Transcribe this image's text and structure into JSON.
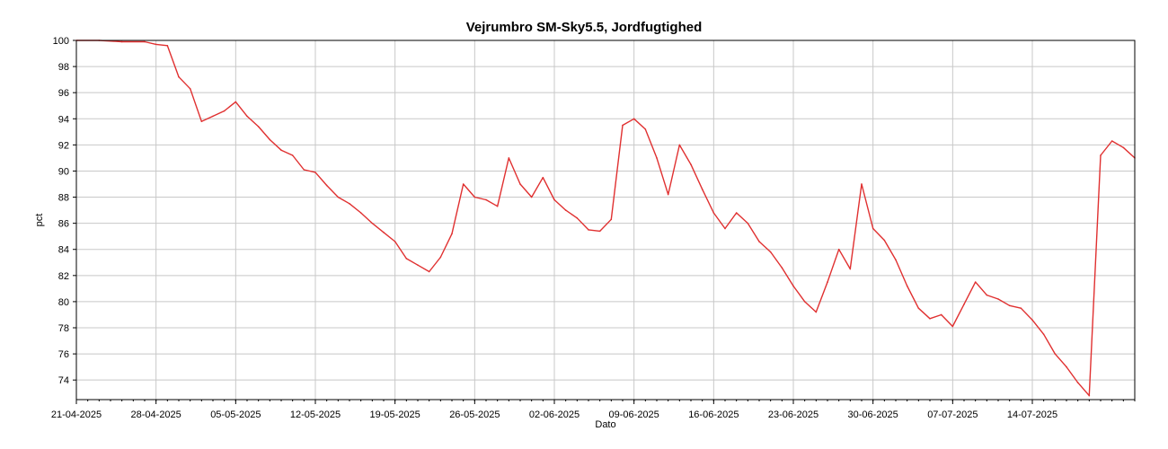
{
  "chart_data": {
    "type": "line",
    "title": "Vejrumbro SM-Sky5.5, Jordfugtighed",
    "xlabel": "Dato",
    "ylabel": "pct",
    "ylim": [
      72.5,
      100
    ],
    "yticks": [
      100,
      98,
      96,
      94,
      92,
      90,
      88,
      86,
      84,
      82,
      80,
      78,
      76,
      74
    ],
    "x_range": [
      "2025-04-21",
      "2025-07-23"
    ],
    "xticks": [
      "21-04-2025",
      "28-04-2025",
      "05-05-2025",
      "12-05-2025",
      "19-05-2025",
      "26-05-2025",
      "02-06-2025",
      "09-06-2025",
      "16-06-2025",
      "23-06-2025",
      "30-06-2025",
      "07-07-2025",
      "14-07-2025"
    ],
    "grid": true,
    "line_color": "#e03030",
    "series": [
      {
        "x": [
          "2025-04-21",
          "2025-04-23",
          "2025-04-25",
          "2025-04-27",
          "2025-04-28",
          "2025-04-29",
          "2025-04-30",
          "2025-05-01",
          "2025-05-02",
          "2025-05-03",
          "2025-05-04",
          "2025-05-05",
          "2025-05-06",
          "2025-05-07",
          "2025-05-08",
          "2025-05-09",
          "2025-05-10",
          "2025-05-11",
          "2025-05-12",
          "2025-05-13",
          "2025-05-14",
          "2025-05-15",
          "2025-05-16",
          "2025-05-17",
          "2025-05-18",
          "2025-05-19",
          "2025-05-20",
          "2025-05-21",
          "2025-05-22",
          "2025-05-23",
          "2025-05-24",
          "2025-05-25",
          "2025-05-26",
          "2025-05-27",
          "2025-05-28",
          "2025-05-29",
          "2025-05-30",
          "2025-05-31",
          "2025-06-01",
          "2025-06-02",
          "2025-06-03",
          "2025-06-04",
          "2025-06-05",
          "2025-06-06",
          "2025-06-07",
          "2025-06-08",
          "2025-06-09",
          "2025-06-10",
          "2025-06-11",
          "2025-06-12",
          "2025-06-13",
          "2025-06-14",
          "2025-06-15",
          "2025-06-16",
          "2025-06-17",
          "2025-06-18",
          "2025-06-19",
          "2025-06-20",
          "2025-06-21",
          "2025-06-22",
          "2025-06-23",
          "2025-06-24",
          "2025-06-25",
          "2025-06-26",
          "2025-06-27",
          "2025-06-28",
          "2025-06-29",
          "2025-06-30",
          "2025-07-01",
          "2025-07-02",
          "2025-07-03",
          "2025-07-04",
          "2025-07-05",
          "2025-07-06",
          "2025-07-07",
          "2025-07-08",
          "2025-07-09",
          "2025-07-10",
          "2025-07-11",
          "2025-07-12",
          "2025-07-13",
          "2025-07-14",
          "2025-07-15",
          "2025-07-16",
          "2025-07-17",
          "2025-07-18",
          "2025-07-19",
          "2025-07-20",
          "2025-07-21",
          "2025-07-22",
          "2025-07-23"
        ],
        "y": [
          100,
          100,
          99.9,
          99.9,
          99.7,
          99.6,
          97.2,
          96.3,
          93.8,
          94.2,
          94.6,
          95.3,
          94.2,
          93.4,
          92.4,
          91.6,
          91.2,
          90.1,
          89.9,
          88.9,
          88.0,
          87.5,
          86.8,
          86.0,
          85.3,
          84.6,
          83.3,
          82.8,
          82.3,
          83.4,
          85.2,
          89.0,
          88.0,
          87.8,
          87.3,
          91.0,
          89.0,
          88.0,
          89.5,
          87.8,
          87.0,
          86.4,
          85.5,
          85.4,
          86.3,
          93.5,
          94.0,
          93.2,
          91.0,
          88.2,
          92.0,
          90.5,
          88.6,
          86.8,
          85.6,
          86.8,
          86.0,
          84.6,
          83.8,
          82.6,
          81.2,
          80.0,
          79.2,
          81.5,
          84.0,
          82.5,
          89.0,
          85.6,
          84.7,
          83.2,
          81.2,
          79.5,
          78.7,
          79.0,
          78.1,
          79.8,
          81.5,
          80.5,
          80.2,
          79.7,
          79.5,
          78.6,
          77.5,
          76.0,
          75.0,
          73.8,
          72.8,
          91.2,
          92.3,
          91.8,
          91.0
        ]
      }
    ]
  }
}
